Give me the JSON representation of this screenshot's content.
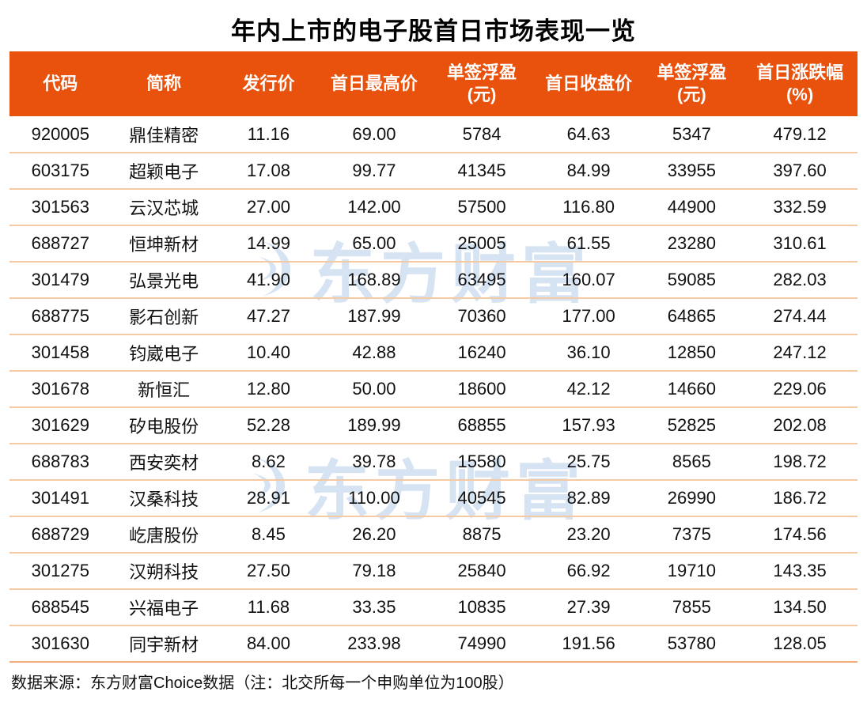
{
  "page": {
    "title": "年内上市的电子股首日市场表现一览",
    "footer_note": "数据来源：东方财富Choice数据（注：北交所每一个申购单位为100股）",
    "watermark_text": "东方财富"
  },
  "chart_data": {
    "type": "table",
    "title": "年内上市的电子股首日市场表现一览",
    "columns": [
      "代码",
      "简称",
      "发行价",
      "首日最高价",
      "单签浮盈(元)",
      "首日收盘价",
      "单签浮盈(元)",
      "首日涨跌幅(%)"
    ],
    "header_lines": [
      [
        "代码"
      ],
      [
        "简称"
      ],
      [
        "发行价"
      ],
      [
        "首日最高价"
      ],
      [
        "单签浮盈",
        "(元)"
      ],
      [
        "首日收盘价"
      ],
      [
        "单签浮盈",
        "(元)"
      ],
      [
        "首日涨跌幅",
        "(%)"
      ]
    ],
    "rows": [
      [
        "920005",
        "鼎佳精密",
        "11.16",
        "69.00",
        "5784",
        "64.63",
        "5347",
        "479.12"
      ],
      [
        "603175",
        "超颖电子",
        "17.08",
        "99.77",
        "41345",
        "84.99",
        "33955",
        "397.60"
      ],
      [
        "301563",
        "云汉芯城",
        "27.00",
        "142.00",
        "57500",
        "116.80",
        "44900",
        "332.59"
      ],
      [
        "688727",
        "恒坤新材",
        "14.99",
        "65.00",
        "25005",
        "61.55",
        "23280",
        "310.61"
      ],
      [
        "301479",
        "弘景光电",
        "41.90",
        "168.89",
        "63495",
        "160.07",
        "59085",
        "282.03"
      ],
      [
        "688775",
        "影石创新",
        "47.27",
        "187.99",
        "70360",
        "177.00",
        "64865",
        "274.44"
      ],
      [
        "301458",
        "钧崴电子",
        "10.40",
        "42.88",
        "16240",
        "36.10",
        "12850",
        "247.12"
      ],
      [
        "301678",
        "新恒汇",
        "12.80",
        "50.00",
        "18600",
        "42.12",
        "14660",
        "229.06"
      ],
      [
        "301629",
        "矽电股份",
        "52.28",
        "189.99",
        "68855",
        "157.93",
        "52825",
        "202.08"
      ],
      [
        "688783",
        "西安奕材",
        "8.62",
        "39.78",
        "15580",
        "25.75",
        "8565",
        "198.72"
      ],
      [
        "301491",
        "汉桑科技",
        "28.91",
        "110.00",
        "40545",
        "82.89",
        "26990",
        "186.72"
      ],
      [
        "688729",
        "屹唐股份",
        "8.45",
        "26.20",
        "8875",
        "23.20",
        "7375",
        "174.56"
      ],
      [
        "301275",
        "汉朔科技",
        "27.50",
        "79.18",
        "25840",
        "66.92",
        "19710",
        "143.35"
      ],
      [
        "688545",
        "兴福电子",
        "11.68",
        "33.35",
        "10835",
        "27.39",
        "7855",
        "134.50"
      ],
      [
        "301630",
        "同宇新材",
        "84.00",
        "233.98",
        "74990",
        "191.56",
        "53780",
        "128.05"
      ]
    ]
  },
  "colors": {
    "header_bg": "#E8520C",
    "header_text": "#FFFFFF",
    "row_divider": "#F5C9A1",
    "bottom_rule": "#F0AD79",
    "title_text": "#000000",
    "body_text": "#111111",
    "watermark": "#D5E3F2"
  }
}
